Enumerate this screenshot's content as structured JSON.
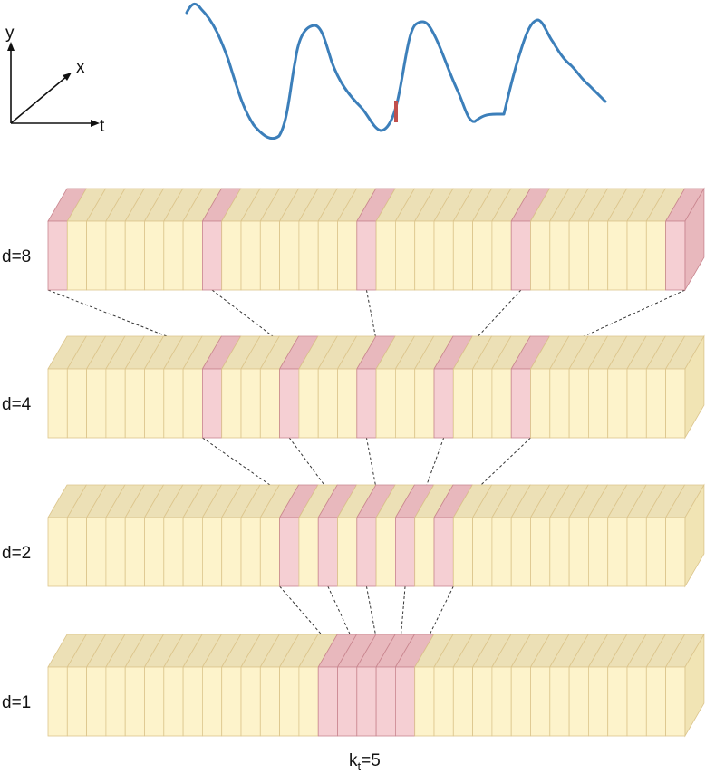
{
  "axes": {
    "y_label": "y",
    "x_label": "x",
    "t_label": "t"
  },
  "layers": [
    {
      "label": "d=8",
      "dilation": 8,
      "highlighted": [
        0,
        8,
        16,
        24,
        32
      ]
    },
    {
      "label": "d=4",
      "dilation": 4,
      "highlighted": [
        8,
        12,
        16,
        20,
        24
      ]
    },
    {
      "label": "d=2",
      "dilation": 2,
      "highlighted": [
        12,
        14,
        16,
        18,
        20
      ]
    },
    {
      "label": "d=1",
      "dilation": 1,
      "highlighted": [
        14,
        15,
        16,
        17,
        18
      ]
    }
  ],
  "cells_per_layer": 33,
  "kernel": {
    "label_main": "k",
    "label_sub": "t",
    "label_tail": "=5",
    "size": 5
  },
  "colors": {
    "cell_fill": "#fdf3cb",
    "cell_stroke": "#dcc58c",
    "top_fill": "#ece0b6",
    "side_fill": "#f1e4b4",
    "highlight_fill": "#f5cfd3",
    "highlight_top": "#e8b8bd",
    "highlight_stroke": "#c9868f",
    "signal": "#3c7fba",
    "marker": "#c0504d"
  }
}
